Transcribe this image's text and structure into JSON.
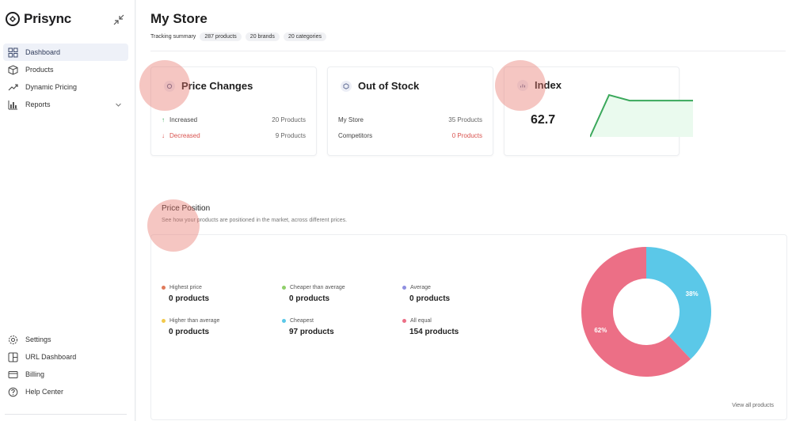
{
  "brand": {
    "name": "Prisync"
  },
  "sidebar": {
    "items": [
      {
        "label": "Dashboard",
        "icon": "grid-icon",
        "active": true
      },
      {
        "label": "Products",
        "icon": "box-icon"
      },
      {
        "label": "Dynamic Pricing",
        "icon": "trend-icon"
      },
      {
        "label": "Reports",
        "icon": "bar-chart-icon"
      }
    ],
    "bottom_items": [
      {
        "label": "Settings",
        "icon": "gear-icon"
      },
      {
        "label": "URL Dashboard",
        "icon": "layout-icon"
      },
      {
        "label": "Billing",
        "icon": "card-icon"
      },
      {
        "label": "Help Center",
        "icon": "help-icon"
      }
    ]
  },
  "header": {
    "title": "My Store",
    "summary_label": "Tracking summary",
    "chips": [
      "287 products",
      "20 brands",
      "20 categories"
    ]
  },
  "price_changes": {
    "title": "Price Changes",
    "rows": [
      {
        "label": "Increased",
        "value": "20 Products"
      },
      {
        "label": "Decreased",
        "value": "9 Products"
      }
    ]
  },
  "out_of_stock": {
    "title": "Out of Stock",
    "rows": [
      {
        "label": "My Store",
        "value": "35 Products"
      },
      {
        "label": "Competitors",
        "value": "0 Products"
      }
    ]
  },
  "index": {
    "title": "Index",
    "value": "62.7",
    "sparkline": [
      0,
      0.98,
      0.85,
      0.85,
      0.85,
      0.85
    ]
  },
  "price_position": {
    "title": "Price Position",
    "subtitle": "See how your products are positioned in the market, across different prices.",
    "legend": [
      {
        "label": "Highest price",
        "count": "0 products",
        "color": "#e07a5a"
      },
      {
        "label": "Cheaper than average",
        "count": "0 products",
        "color": "#8fcf6a"
      },
      {
        "label": "Average",
        "count": "0 products",
        "color": "#8f8fe0"
      },
      {
        "label": "Higher than average",
        "count": "0 products",
        "color": "#f2c94c"
      },
      {
        "label": "Cheapest",
        "count": "97 products",
        "color": "#5bc8e8"
      },
      {
        "label": "All equal",
        "count": "154 products",
        "color": "#ec6f86"
      }
    ],
    "donut": [
      {
        "label": "38%",
        "value": 38,
        "color": "#5bc8e8"
      },
      {
        "label": "62%",
        "value": 62,
        "color": "#ec6f86"
      }
    ],
    "view_all": "View all products"
  },
  "colors": {
    "accent": "#2e3a59",
    "increase": "#3aa85b",
    "decrease": "#d9534f",
    "sparkline": "#3aa85b"
  }
}
